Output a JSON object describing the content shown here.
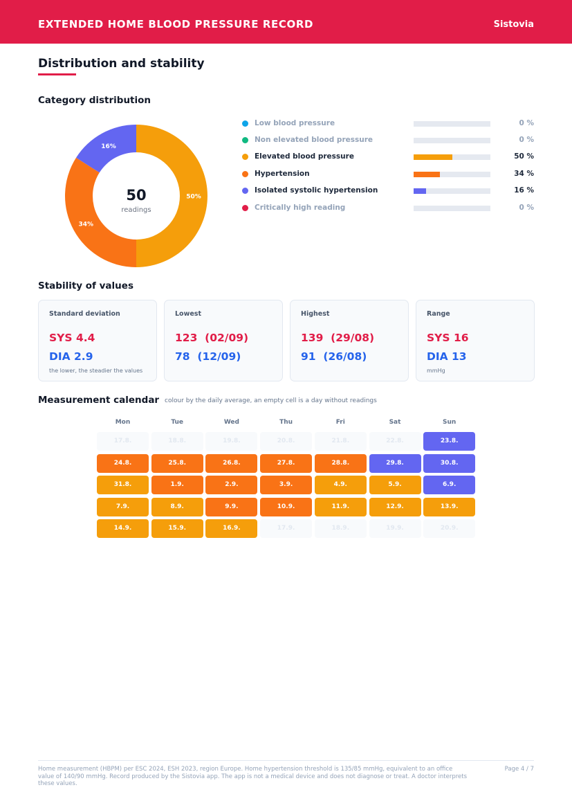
{
  "header": {
    "title": "EXTENDED HOME BLOOD PRESSURE RECORD",
    "brand": "Sistovia",
    "color": "#e11d48"
  },
  "section": {
    "title": "Distribution and stability"
  },
  "distribution": {
    "title": "Category distribution",
    "total_readings": "50",
    "total_label": "readings",
    "categories": [
      {
        "label": "Low blood pressure",
        "percent": 0,
        "percent_text": "0 %",
        "color": "#0ea5e9"
      },
      {
        "label": "Non elevated blood pressure",
        "percent": 0,
        "percent_text": "0 %",
        "color": "#10b981"
      },
      {
        "label": "Elevated blood pressure",
        "percent": 50,
        "percent_text": "50 %",
        "color": "#f59e0b"
      },
      {
        "label": "Hypertension",
        "percent": 34,
        "percent_text": "34 %",
        "color": "#f97316"
      },
      {
        "label": "Isolated systolic hypertension",
        "percent": 16,
        "percent_text": "16 %",
        "color": "#6366f1"
      },
      {
        "label": "Critically high reading",
        "percent": 0,
        "percent_text": "0 %",
        "color": "#e11d48"
      }
    ]
  },
  "chart_data": {
    "type": "pie",
    "categories": [
      "Low blood pressure",
      "Non elevated blood pressure",
      "Elevated blood pressure",
      "Hypertension",
      "Isolated systolic hypertension",
      "Critically high reading"
    ],
    "values": [
      0,
      0,
      50,
      34,
      16,
      0
    ],
    "slice_labels": [
      "",
      "",
      "50%",
      "34%",
      "16%",
      ""
    ],
    "colors": [
      "#0ea5e9",
      "#10b981",
      "#f59e0b",
      "#f97316",
      "#6366f1",
      "#e11d48"
    ],
    "donut": true,
    "center_value": "50",
    "center_label": "readings"
  },
  "stability": {
    "title": "Stability of values",
    "cards": [
      {
        "title": "Standard deviation",
        "sys": "SYS 4.4",
        "dia": "DIA 2.9",
        "note": "the lower, the steadier the values"
      },
      {
        "title": "Lowest",
        "sys": "123  (02/09)",
        "dia": "78  (12/09)",
        "note": ""
      },
      {
        "title": "Highest",
        "sys": "139  (29/08)",
        "dia": "91  (26/08)",
        "note": ""
      },
      {
        "title": "Range",
        "sys": "SYS 16",
        "dia": "DIA 13",
        "note": "mmHg"
      }
    ]
  },
  "calendar": {
    "title": "Measurement calendar",
    "note": "colour by the daily average, an empty cell is a day without readings",
    "days": [
      "Mon",
      "Tue",
      "Wed",
      "Thu",
      "Fri",
      "Sat",
      "Sun"
    ],
    "level_colors": {
      "empty": "#f8fafc",
      "elevated": "#f59e0b",
      "hypertension": "#f97316",
      "isolated_systolic": "#6366f1"
    },
    "weeks": [
      [
        {
          "d": "17.8.",
          "c": "empty"
        },
        {
          "d": "18.8.",
          "c": "empty"
        },
        {
          "d": "19.8.",
          "c": "empty"
        },
        {
          "d": "20.8.",
          "c": "empty"
        },
        {
          "d": "21.8.",
          "c": "empty"
        },
        {
          "d": "22.8.",
          "c": "empty"
        },
        {
          "d": "23.8.",
          "c": "violet"
        }
      ],
      [
        {
          "d": "24.8.",
          "c": "orange"
        },
        {
          "d": "25.8.",
          "c": "orange"
        },
        {
          "d": "26.8.",
          "c": "orange"
        },
        {
          "d": "27.8.",
          "c": "orange"
        },
        {
          "d": "28.8.",
          "c": "orange"
        },
        {
          "d": "29.8.",
          "c": "violet"
        },
        {
          "d": "30.8.",
          "c": "violet"
        }
      ],
      [
        {
          "d": "31.8.",
          "c": "amber"
        },
        {
          "d": "1.9.",
          "c": "orange"
        },
        {
          "d": "2.9.",
          "c": "orange"
        },
        {
          "d": "3.9.",
          "c": "orange"
        },
        {
          "d": "4.9.",
          "c": "amber"
        },
        {
          "d": "5.9.",
          "c": "amber"
        },
        {
          "d": "6.9.",
          "c": "violet"
        }
      ],
      [
        {
          "d": "7.9.",
          "c": "amber"
        },
        {
          "d": "8.9.",
          "c": "amber"
        },
        {
          "d": "9.9.",
          "c": "orange"
        },
        {
          "d": "10.9.",
          "c": "orange"
        },
        {
          "d": "11.9.",
          "c": "amber"
        },
        {
          "d": "12.9.",
          "c": "amber"
        },
        {
          "d": "13.9.",
          "c": "amber"
        }
      ],
      [
        {
          "d": "14.9.",
          "c": "amber"
        },
        {
          "d": "15.9.",
          "c": "amber"
        },
        {
          "d": "16.9.",
          "c": "amber"
        },
        {
          "d": "17.9.",
          "c": "empty"
        },
        {
          "d": "18.9.",
          "c": "empty"
        },
        {
          "d": "19.9.",
          "c": "empty"
        },
        {
          "d": "20.9.",
          "c": "empty"
        }
      ]
    ]
  },
  "footer": {
    "text": "Home measurement (HBPM) per ESC 2024, ESH 2023, region Europe. Home hypertension threshold is 135/85 mmHg, equivalent to an office value of 140/90 mmHg. Record produced by the Sistovia app. The app is not a medical device and does not diagnose or treat. A doctor interprets these values.",
    "page": "Page 4 / 7"
  }
}
